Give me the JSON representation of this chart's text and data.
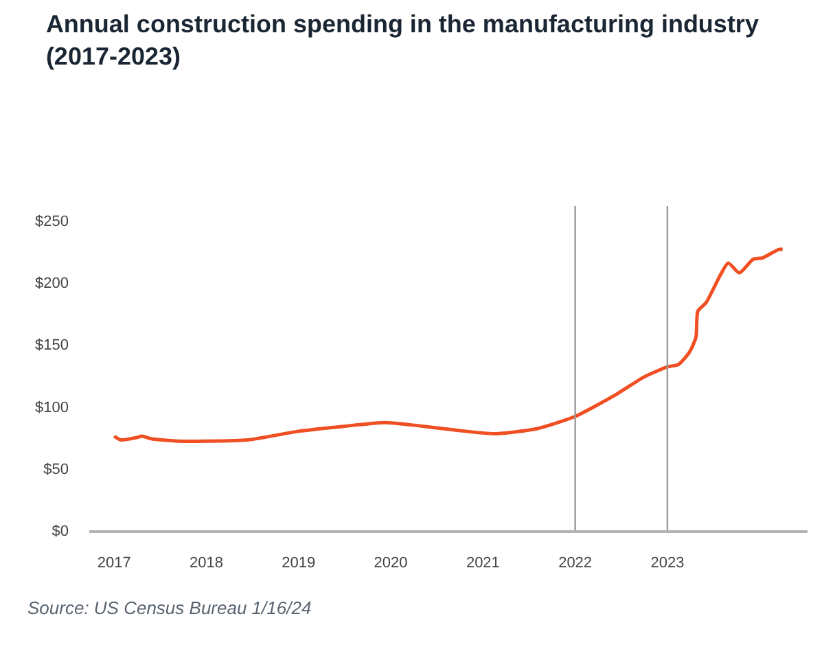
{
  "chart_data": {
    "type": "line",
    "title": "Annual construction spending in the manufacturing industry\n(2017-2023)",
    "x": [
      2017.0,
      2017.07,
      2017.25,
      2017.3,
      2017.4,
      2017.7,
      2018.0,
      2018.45,
      2019.0,
      2019.49,
      2019.94,
      2020.24,
      2020.69,
      2021.13,
      2021.58,
      2022.0,
      2022.45,
      2022.75,
      2023.0,
      2023.12,
      2023.24,
      2023.31,
      2023.33,
      2023.42,
      2023.58,
      2023.66,
      2023.78,
      2023.93,
      2024.03,
      2024.21,
      2024.25
    ],
    "series": [
      {
        "color": "#f04e23",
        "values": [
          76,
          73,
          75,
          76,
          74,
          72,
          72,
          73,
          80,
          84,
          87,
          85,
          81,
          78,
          82,
          92,
          110,
          124,
          132,
          134,
          144,
          156,
          177,
          184,
          207,
          216,
          208,
          219,
          220,
          227,
          227
        ]
      }
    ],
    "xlim": [
      2016.73,
      2024.52
    ],
    "xticks": [
      2017,
      2018,
      2019,
      2020,
      2021,
      2022,
      2023
    ],
    "ylim": [
      0,
      262
    ],
    "yticks": [
      {
        "value": 0,
        "label": "$0"
      },
      {
        "value": 50,
        "label": "$50"
      },
      {
        "value": 100,
        "label": "$100"
      },
      {
        "value": 150,
        "label": "$150"
      },
      {
        "value": 200,
        "label": "$200"
      },
      {
        "value": 250,
        "label": "$250"
      }
    ],
    "ref_lines": [
      {
        "axis": "x",
        "value": 2022,
        "color": "#999999"
      },
      {
        "axis": "x",
        "value": 2023,
        "color": "#999999"
      }
    ],
    "marker": "none",
    "line_style": "solid",
    "annotations": [
      "Source: US Census Bureau 1/16/24"
    ]
  }
}
